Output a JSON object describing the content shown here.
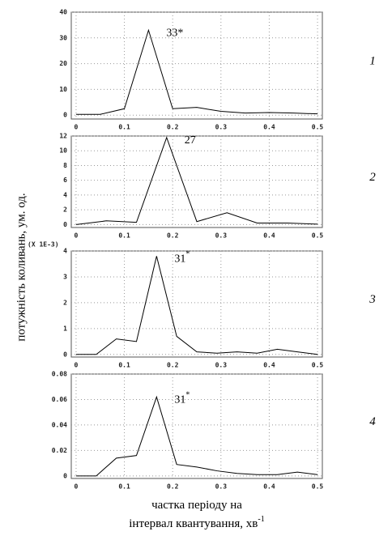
{
  "ylabel": "потужність коливань, ум. од.",
  "xlabel_line1": "частка періоду на",
  "xlabel_line2": "інтервал квантування, хв",
  "xlabel_sup": "-1",
  "chart_data": [
    {
      "type": "line",
      "panel_label": "1",
      "annotation": "33*",
      "x": [
        0,
        0.05,
        0.1,
        0.15,
        0.2,
        0.25,
        0.3,
        0.35,
        0.4,
        0.45,
        0.5
      ],
      "series": [
        {
          "color": "#000000",
          "values": [
            0.3,
            0.3,
            2.5,
            33,
            2.5,
            3,
            1.5,
            0.8,
            1,
            0.8,
            0.5
          ]
        }
      ],
      "xlim": [
        -0.01,
        0.51
      ],
      "ylim": [
        -1.5,
        40
      ],
      "xticks": [
        0,
        0.1,
        0.2,
        0.3,
        0.4,
        0.5
      ],
      "yticks": [
        0,
        10,
        20,
        30,
        40
      ],
      "grid": true
    },
    {
      "type": "line",
      "panel_label": "2",
      "annotation": "27",
      "x": [
        0,
        0.0625,
        0.125,
        0.1875,
        0.25,
        0.3125,
        0.375,
        0.4375,
        0.5
      ],
      "series": [
        {
          "color": "#000000",
          "values": [
            0,
            0.5,
            0.3,
            11.8,
            0.4,
            1.6,
            0.2,
            0.2,
            0.05
          ]
        }
      ],
      "xlim": [
        -0.01,
        0.51
      ],
      "ylim": [
        -0.4,
        12
      ],
      "xticks": [
        0,
        0.1,
        0.2,
        0.3,
        0.4,
        0.5
      ],
      "yticks": [
        0,
        2,
        4,
        6,
        8,
        10,
        12
      ],
      "grid": true
    },
    {
      "type": "line",
      "panel_label": "3",
      "annotation": "31",
      "annotation_sup": "*",
      "scale_note": "(X 1E-3)",
      "x": [
        0,
        0.0417,
        0.0833,
        0.125,
        0.1667,
        0.2083,
        0.25,
        0.2917,
        0.3333,
        0.375,
        0.4167,
        0.4583,
        0.5
      ],
      "series": [
        {
          "color": "#000000",
          "values": [
            0,
            0,
            0.6,
            0.5,
            3.8,
            0.7,
            0.1,
            0.05,
            0.1,
            0.05,
            0.2,
            0.1,
            0
          ]
        }
      ],
      "xlim": [
        -0.01,
        0.51
      ],
      "ylim": [
        -0.1,
        4
      ],
      "xticks": [
        0,
        0.1,
        0.2,
        0.3,
        0.4,
        0.5
      ],
      "yticks": [
        0,
        1,
        2,
        3,
        4
      ],
      "grid": true
    },
    {
      "type": "line",
      "panel_label": "4",
      "annotation": "31",
      "annotation_sup": "*",
      "x": [
        0,
        0.0417,
        0.0833,
        0.125,
        0.1667,
        0.2083,
        0.25,
        0.2917,
        0.3333,
        0.375,
        0.4167,
        0.4583,
        0.5
      ],
      "series": [
        {
          "color": "#000000",
          "values": [
            0,
            0,
            0.014,
            0.016,
            0.062,
            0.009,
            0.007,
            0.004,
            0.002,
            0.001,
            0.001,
            0.003,
            0.001
          ]
        }
      ],
      "xlim": [
        -0.01,
        0.51
      ],
      "ylim": [
        -0.002,
        0.08
      ],
      "xticks": [
        0,
        0.1,
        0.2,
        0.3,
        0.4,
        0.5
      ],
      "yticks": [
        0,
        0.02,
        0.04,
        0.06,
        0.08
      ],
      "grid": true
    }
  ]
}
